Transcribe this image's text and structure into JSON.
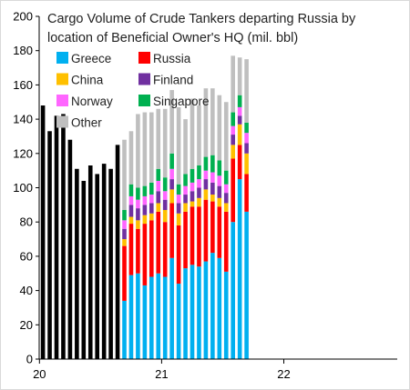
{
  "chart_data": {
    "type": "bar",
    "title_lines": [
      "Cargo Volume of Crude Tankers departing Russia by",
      "location of Beneficial Owner's HQ (mil. bbl)"
    ],
    "xlabel": "",
    "ylabel": "",
    "ylim": [
      0,
      200
    ],
    "y_ticks": [
      "0",
      "20",
      "40",
      "60",
      "80",
      "100",
      "120",
      "140",
      "160",
      "180",
      "200"
    ],
    "x_ticks": [
      "20",
      "21",
      "22"
    ],
    "grid": false,
    "legend_position": "top-left",
    "pre_period_series": {
      "color": "#000000",
      "values": [
        148,
        133,
        142,
        143,
        128,
        111,
        104,
        113,
        108,
        114,
        111,
        125
      ]
    },
    "series": [
      {
        "name": "Greece",
        "color": "#00b0f0",
        "values": [
          34,
          49,
          50,
          43,
          48,
          50,
          48,
          59,
          44,
          53,
          55,
          54,
          57,
          62,
          59,
          51,
          80,
          105,
          86
        ]
      },
      {
        "name": "Russia",
        "color": "#ff0000",
        "values": [
          32,
          30,
          26,
          36,
          33,
          36,
          32,
          32,
          34,
          33,
          34,
          35,
          36,
          30,
          30,
          35,
          37,
          20,
          22
        ]
      },
      {
        "name": "China",
        "color": "#ffc000",
        "values": [
          4,
          4,
          5,
          5,
          4,
          5,
          7,
          8,
          7,
          5,
          3,
          5,
          6,
          4,
          5,
          5,
          8,
          12,
          12
        ]
      },
      {
        "name": "Finland",
        "color": "#7030a0",
        "values": [
          6,
          7,
          7,
          6,
          6,
          7,
          6,
          6,
          6,
          5,
          6,
          6,
          6,
          7,
          7,
          6,
          6,
          5,
          6
        ]
      },
      {
        "name": "Norway",
        "color": "#ff66ff",
        "values": [
          5,
          5,
          5,
          5,
          5,
          6,
          5,
          6,
          5,
          5,
          5,
          5,
          5,
          6,
          6,
          5,
          5,
          5,
          6
        ]
      },
      {
        "name": "Singapore",
        "color": "#00b050",
        "values": [
          6,
          7,
          7,
          6,
          7,
          7,
          8,
          9,
          6,
          7,
          8,
          8,
          8,
          10,
          9,
          8,
          8,
          7,
          6
        ]
      },
      {
        "name": "Other",
        "color": "#bfbfbf",
        "values": [
          41,
          31,
          43,
          43,
          41,
          35,
          40,
          37,
          45,
          32,
          41,
          35,
          40,
          39,
          38,
          40,
          33,
          22,
          37
        ]
      }
    ]
  }
}
